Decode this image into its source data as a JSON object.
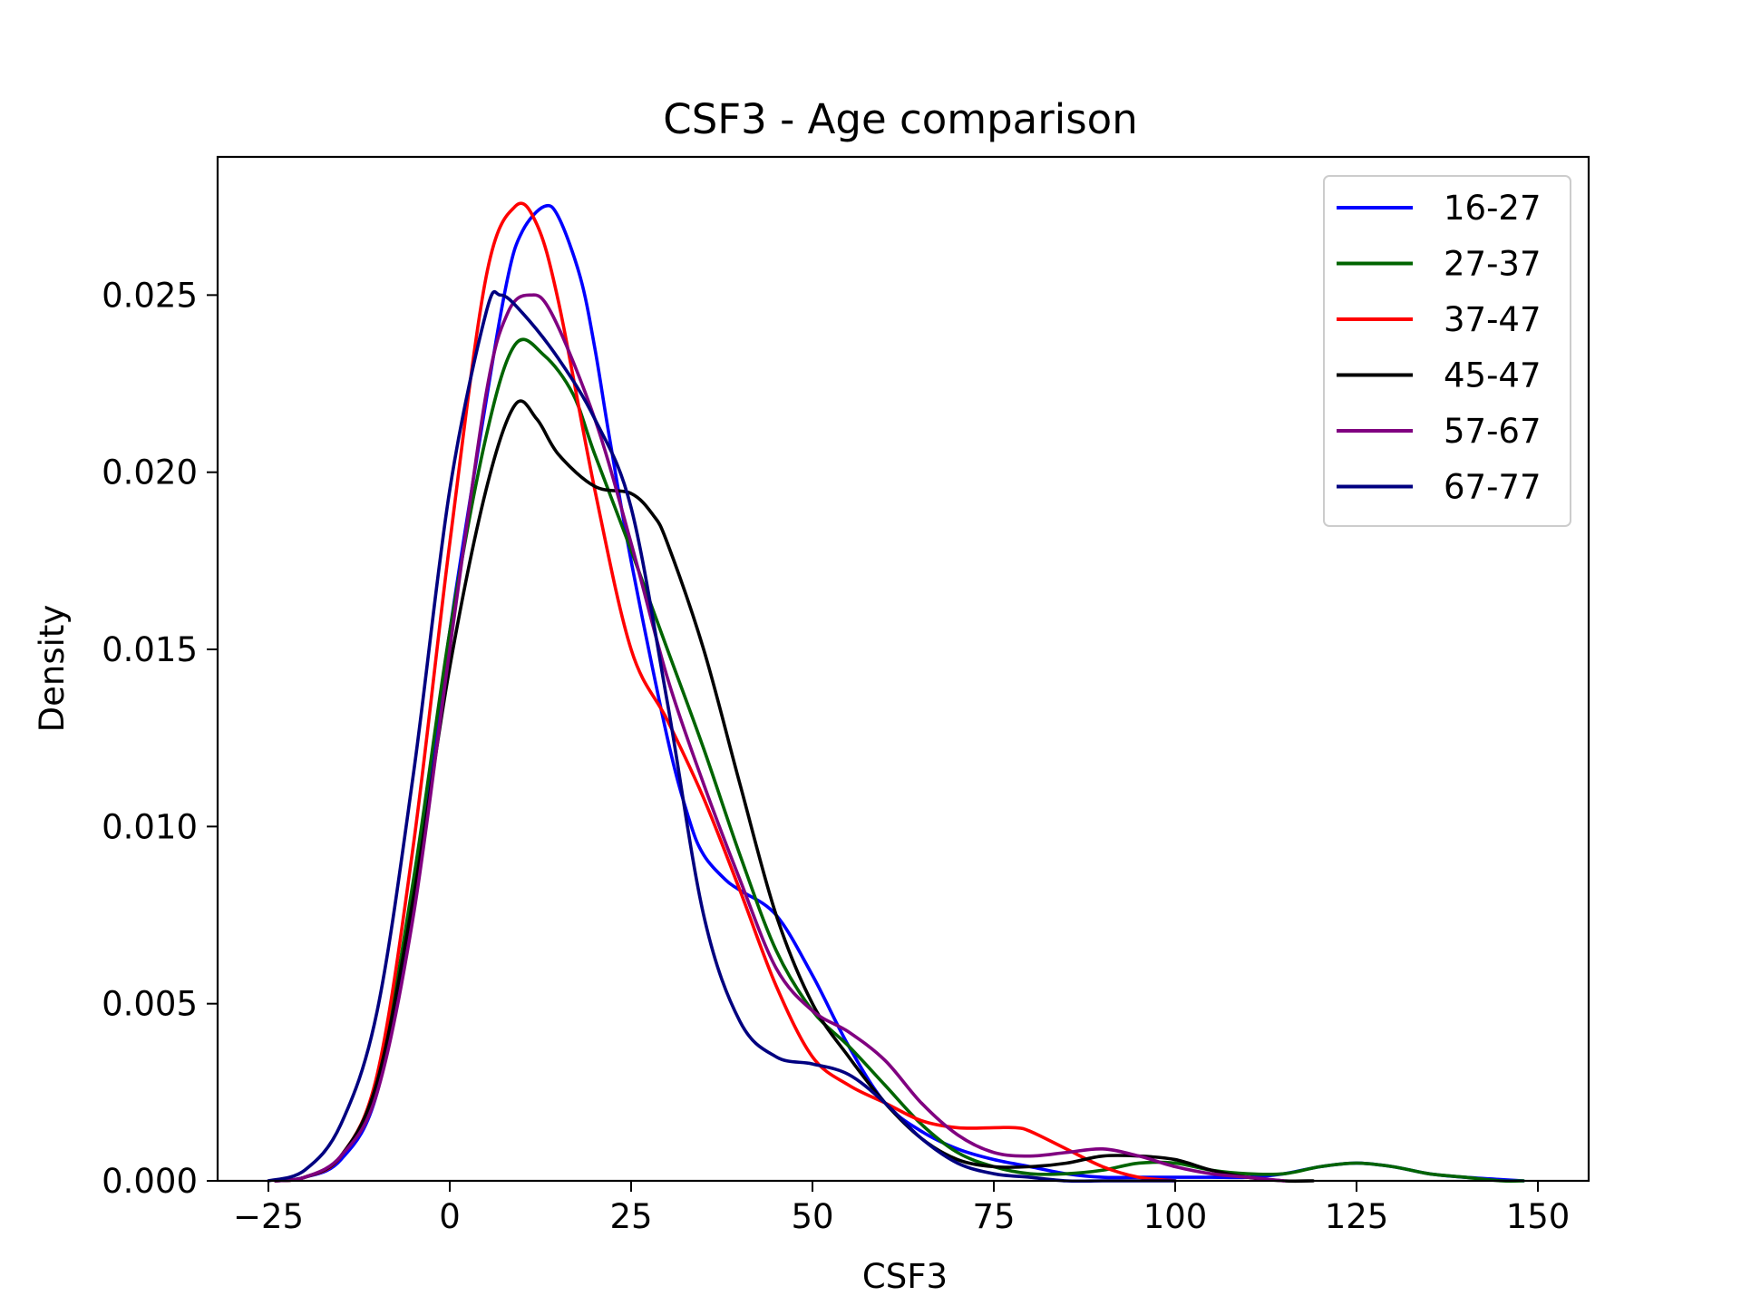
{
  "chart_data": {
    "type": "line",
    "title": "CSF3 - Age comparison",
    "xlabel": "CSF3",
    "ylabel": "Density",
    "xlim": [
      -32,
      157
    ],
    "ylim": [
      0,
      0.0289
    ],
    "xticks": [
      -25,
      0,
      25,
      50,
      75,
      100,
      125,
      150
    ],
    "xtick_labels": [
      "−25",
      "0",
      "25",
      "50",
      "75",
      "100",
      "125",
      "150"
    ],
    "yticks": [
      0,
      0.005,
      0.01,
      0.015,
      0.02,
      0.025
    ],
    "ytick_labels": [
      "0.000",
      "0.005",
      "0.010",
      "0.015",
      "0.020",
      "0.025"
    ],
    "grid": false,
    "legend_position": "top-right",
    "series": [
      {
        "name": "16-27",
        "color": "#0000ff",
        "x": [
          -24,
          -20,
          -15,
          -10,
          -5,
          0,
          5,
          8,
          10,
          13,
          15,
          18,
          20,
          22,
          25,
          30,
          33,
          35,
          38,
          40,
          45,
          50,
          55,
          60,
          65,
          70,
          75,
          80,
          85,
          90,
          95,
          100,
          105,
          110,
          115,
          120,
          125,
          130,
          135,
          140,
          148
        ],
        "y": [
          0.0,
          0.0001,
          0.0006,
          0.0025,
          0.008,
          0.0155,
          0.022,
          0.0255,
          0.0268,
          0.0275,
          0.0272,
          0.0255,
          0.0235,
          0.021,
          0.0175,
          0.0125,
          0.0102,
          0.0092,
          0.0085,
          0.0082,
          0.0075,
          0.0058,
          0.0038,
          0.0022,
          0.0014,
          0.0009,
          0.0006,
          0.0004,
          0.0002,
          0.0001,
          0.0001,
          0.0001,
          0.0001,
          0.0001,
          0.0002,
          0.0004,
          0.0005,
          0.0004,
          0.0002,
          0.0001,
          0.0
        ]
      },
      {
        "name": "27-37",
        "color": "#006400",
        "x": [
          -24,
          -20,
          -15,
          -10,
          -5,
          0,
          5,
          9,
          13,
          17,
          20,
          25,
          30,
          35,
          40,
          45,
          50,
          55,
          60,
          65,
          70,
          75,
          80,
          85,
          90,
          95,
          100,
          105,
          110,
          115,
          120,
          125,
          130,
          135,
          140,
          145,
          148
        ],
        "y": [
          0.0,
          0.0001,
          0.0007,
          0.0028,
          0.0085,
          0.0155,
          0.021,
          0.0236,
          0.0233,
          0.0222,
          0.0205,
          0.0178,
          0.015,
          0.0122,
          0.0092,
          0.0065,
          0.0048,
          0.0038,
          0.0027,
          0.0016,
          0.0008,
          0.0004,
          0.0002,
          0.0002,
          0.0003,
          0.0005,
          0.0005,
          0.0003,
          0.0002,
          0.0002,
          0.0004,
          0.0005,
          0.0004,
          0.0002,
          0.0001,
          0.0,
          0.0
        ]
      },
      {
        "name": "37-47",
        "color": "#ff0000",
        "x": [
          -24,
          -20,
          -15,
          -10,
          -5,
          0,
          5,
          9,
          12,
          15,
          20,
          25,
          30,
          35,
          40,
          45,
          50,
          55,
          60,
          65,
          70,
          75,
          78,
          80,
          85,
          90,
          95,
          100
        ],
        "y": [
          0.0,
          0.0001,
          0.0007,
          0.003,
          0.0095,
          0.018,
          0.0255,
          0.0275,
          0.027,
          0.0248,
          0.0195,
          0.015,
          0.013,
          0.0108,
          0.0082,
          0.0055,
          0.0035,
          0.0027,
          0.0022,
          0.0017,
          0.0015,
          0.0015,
          0.0015,
          0.0014,
          0.0009,
          0.0004,
          0.0001,
          0.0
        ]
      },
      {
        "name": "45-47",
        "color": "#000000",
        "x": [
          -24,
          -20,
          -15,
          -10,
          -5,
          0,
          5,
          9,
          12,
          15,
          20,
          25,
          28,
          30,
          35,
          40,
          45,
          50,
          55,
          60,
          65,
          70,
          75,
          80,
          85,
          90,
          95,
          100,
          105,
          110,
          115,
          119
        ],
        "y": [
          0.0,
          0.0001,
          0.0007,
          0.0028,
          0.008,
          0.0145,
          0.0195,
          0.0219,
          0.0215,
          0.0205,
          0.0196,
          0.0194,
          0.0188,
          0.018,
          0.015,
          0.0112,
          0.0075,
          0.005,
          0.0035,
          0.0022,
          0.0012,
          0.0006,
          0.0004,
          0.0004,
          0.0005,
          0.0007,
          0.0007,
          0.0006,
          0.0003,
          0.0001,
          0.0,
          0.0
        ]
      },
      {
        "name": "57-67",
        "color": "#800080",
        "x": [
          -24,
          -20,
          -15,
          -10,
          -5,
          0,
          5,
          8,
          11,
          14,
          20,
          25,
          30,
          35,
          40,
          45,
          50,
          55,
          60,
          65,
          70,
          75,
          80,
          85,
          90,
          95,
          100,
          105,
          110,
          115
        ],
        "y": [
          0.0,
          0.0001,
          0.0007,
          0.0025,
          0.0075,
          0.015,
          0.0222,
          0.0245,
          0.025,
          0.0245,
          0.0215,
          0.018,
          0.0142,
          0.0112,
          0.0085,
          0.006,
          0.0048,
          0.0042,
          0.0034,
          0.0022,
          0.0013,
          0.0008,
          0.0007,
          0.0008,
          0.0009,
          0.0007,
          0.0004,
          0.0002,
          0.0001,
          0.0
        ]
      },
      {
        "name": "67-77",
        "color": "#000080",
        "x": [
          -25,
          -20,
          -15,
          -10,
          -5,
          0,
          5,
          7,
          10,
          15,
          20,
          25,
          30,
          35,
          40,
          45,
          50,
          55,
          60,
          65,
          70,
          75,
          80,
          85,
          90,
          95,
          100
        ],
        "y": [
          0.0,
          0.0003,
          0.0016,
          0.0048,
          0.0115,
          0.0195,
          0.0245,
          0.025,
          0.0245,
          0.0232,
          0.0215,
          0.019,
          0.0135,
          0.0075,
          0.0045,
          0.0035,
          0.0033,
          0.003,
          0.0022,
          0.0012,
          0.0005,
          0.0002,
          0.0001,
          0.0,
          0.0,
          0.0,
          0.0
        ]
      }
    ]
  }
}
